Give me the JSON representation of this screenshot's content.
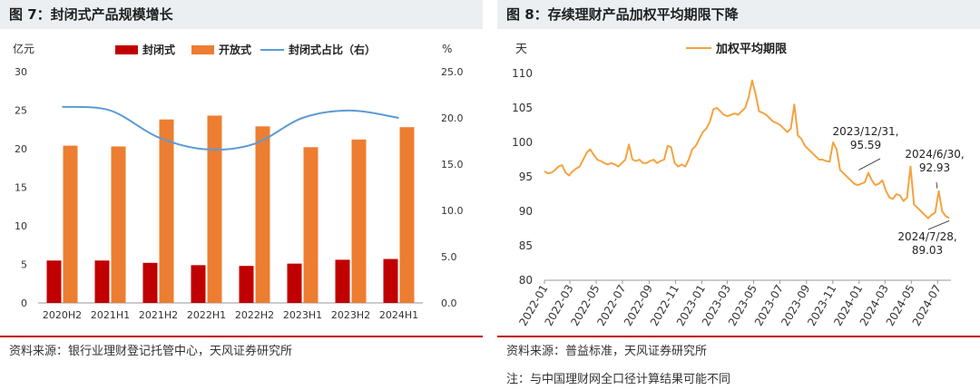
{
  "charts": [
    {
      "figure_title": "图 7：封闭式产品规模增长",
      "source": "资料来源：银行业理财登记托管中心，天风证券研究所"
    },
    {
      "figure_title": "图 8：存续理财产品加权平均期限下降",
      "source": "资料来源：普益标准，天风证券研究所",
      "note": "注：与中国理财网全口径计算结果可能不同"
    }
  ],
  "colors": {
    "closed": "#c00000",
    "open": "#ed7d31",
    "ratio": "#5b9bd5",
    "maturity": "#f4a340",
    "rule": "#c00000",
    "header_bg": "#eceff1"
  },
  "chart_data": [
    {
      "type": "bar",
      "title": "",
      "ylabel_left": "亿元",
      "ylabel_right": "%",
      "categories": [
        "2020H2",
        "2021H1",
        "2021H2",
        "2022H1",
        "2022H2",
        "2023H1",
        "2023H2",
        "2024H1"
      ],
      "series": [
        {
          "name": "封闭式",
          "type": "bar",
          "axis": "left",
          "values": [
            5.5,
            5.5,
            5.2,
            4.9,
            4.8,
            5.1,
            5.6,
            5.7
          ]
        },
        {
          "name": "开放式",
          "type": "bar",
          "axis": "left",
          "values": [
            20.4,
            20.3,
            23.8,
            24.3,
            22.9,
            20.2,
            21.2,
            22.8
          ]
        },
        {
          "name": "封闭式占比（右）",
          "type": "line",
          "axis": "right",
          "values": [
            21.2,
            20.8,
            17.9,
            16.6,
            17.2,
            20.0,
            20.8,
            20.0
          ]
        }
      ],
      "ylim_left": [
        0,
        30
      ],
      "yticks_left": [
        "0",
        "5",
        "10",
        "15",
        "20",
        "25",
        "30"
      ],
      "ylim_right": [
        0,
        25
      ],
      "yticks_right": [
        "0.0",
        "5.0",
        "10.0",
        "15.0",
        "20.0",
        "25.0"
      ],
      "legend": "top-center",
      "grid": false
    },
    {
      "type": "line",
      "title": "",
      "ylabel": "天",
      "x_start": "2022-01",
      "x_end": "2024-08",
      "xticks": [
        "2022-01",
        "2022-03",
        "2022-05",
        "2022-07",
        "2022-09",
        "2022-11",
        "2023-01",
        "2023-03",
        "2023-05",
        "2023-07",
        "2023-09",
        "2023-11",
        "2024-01",
        "2024-03",
        "2024-05",
        "2024-07"
      ],
      "ylim": [
        80,
        110
      ],
      "yticks": [
        "80",
        "85",
        "90",
        "95",
        "100",
        "105",
        "110"
      ],
      "series": [
        {
          "name": "加权平均期限",
          "values": [
            95.8,
            95.5,
            95.6,
            96,
            96.5,
            96.7,
            95.6,
            95.2,
            95.8,
            96.2,
            96.5,
            97.5,
            98.5,
            99,
            98.2,
            97.5,
            97.3,
            97,
            96.8,
            97,
            96.8,
            96.5,
            97,
            97.5,
            99.7,
            97.5,
            97.3,
            97.5,
            97,
            97,
            97.3,
            97.5,
            97,
            97.3,
            97.5,
            99.5,
            99.3,
            97,
            96.5,
            96.8,
            96.5,
            97.5,
            99,
            99.5,
            100.5,
            101.5,
            102,
            103,
            104.8,
            105,
            104.5,
            104,
            103.8,
            104,
            104.2,
            104,
            104.5,
            105,
            106.5,
            109,
            107,
            104.5,
            104.3,
            104,
            103.5,
            103,
            102.8,
            102.5,
            102,
            101.5,
            102,
            105.5,
            101,
            100.5,
            99.5,
            99,
            98.5,
            98,
            97.5,
            97.5,
            97.3,
            97.2,
            100,
            99,
            96,
            95.5,
            95,
            94.5,
            94,
            93.8,
            94,
            94.2,
            95.59,
            94.5,
            93.8,
            94,
            94.5,
            93,
            92,
            91.8,
            92.5,
            92.3,
            91.5,
            92,
            96.5,
            91,
            90.5,
            90,
            89.5,
            89,
            89.5,
            89.8,
            92.93,
            90,
            89.3,
            89.03
          ]
        }
      ],
      "legend": "top-center",
      "grid": false,
      "annotations": [
        {
          "label_lines": [
            "2023/12/31,",
            "95.59"
          ],
          "x": "2023-12-31",
          "y": 95.59
        },
        {
          "label_lines": [
            "2024/6/30,",
            "92.93"
          ],
          "x": "2024-06-30",
          "y": 92.93
        },
        {
          "label_lines": [
            "2024/7/28,",
            "89.03"
          ],
          "x": "2024-07-28",
          "y": 89.03
        }
      ]
    }
  ]
}
